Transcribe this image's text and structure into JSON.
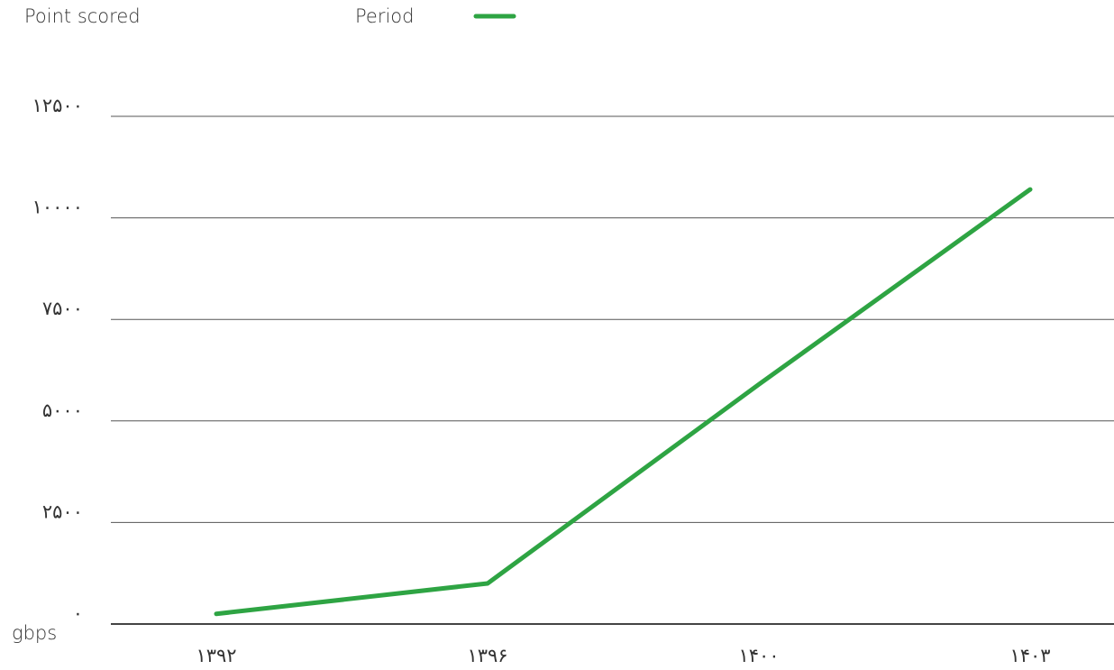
{
  "chart_data": {
    "type": "line",
    "title": "Point scored",
    "y_label": "gbps",
    "categories": [
      "۱۳۹۲",
      "۱۳۹۶",
      "۱۴۰۰",
      "۱۴۰۳"
    ],
    "series": [
      {
        "name": "Period",
        "color": "#2ea443",
        "values": [
          250,
          1000,
          5900,
          10700
        ]
      }
    ],
    "ylim": [
      0,
      12500
    ],
    "yticks": [
      {
        "value": 0,
        "label": "۰"
      },
      {
        "value": 2500,
        "label": "۲۵۰۰"
      },
      {
        "value": 5000,
        "label": "۵۰۰۰"
      },
      {
        "value": 7500,
        "label": "۷۵۰۰"
      },
      {
        "value": 10000,
        "label": "۱۰۰۰۰"
      },
      {
        "value": 12500,
        "label": "۱۲۵۰۰"
      }
    ],
    "grid": true,
    "legend": "top"
  }
}
